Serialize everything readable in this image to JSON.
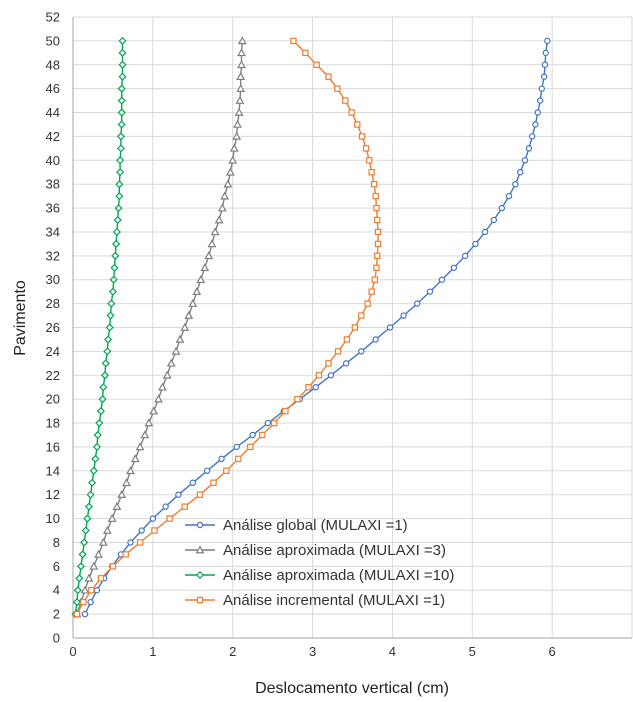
{
  "chart_data": {
    "type": "line",
    "xlabel": "Deslocamento vertical (cm)",
    "ylabel": "Pavimento",
    "xlim": [
      0,
      7
    ],
    "ylim": [
      0,
      52
    ],
    "xticks": [
      0,
      1,
      2,
      3,
      4,
      5,
      6
    ],
    "yticks": [
      0,
      2,
      4,
      6,
      8,
      10,
      12,
      14,
      16,
      18,
      20,
      22,
      24,
      26,
      28,
      30,
      32,
      34,
      36,
      38,
      40,
      42,
      44,
      46,
      48,
      50,
      52
    ],
    "grid": true,
    "legend_position": "bottom-right",
    "series": [
      {
        "name": "Análise global (MULAXI =1)",
        "color": "#4472C4",
        "marker": "circle",
        "x": [
          0.15,
          0.22,
          0.3,
          0.39,
          0.49,
          0.6,
          0.72,
          0.86,
          1.0,
          1.16,
          1.32,
          1.5,
          1.68,
          1.86,
          2.05,
          2.25,
          2.44,
          2.64,
          2.84,
          3.04,
          3.23,
          3.42,
          3.61,
          3.79,
          3.97,
          4.14,
          4.31,
          4.47,
          4.62,
          4.77,
          4.91,
          5.04,
          5.16,
          5.27,
          5.37,
          5.46,
          5.54,
          5.6,
          5.66,
          5.71,
          5.75,
          5.79,
          5.82,
          5.85,
          5.87,
          5.9,
          5.91,
          5.92,
          5.94
        ],
        "y": [
          2,
          3,
          4,
          5,
          6,
          7,
          8,
          9,
          10,
          11,
          12,
          13,
          14,
          15,
          16,
          17,
          18,
          19,
          20,
          21,
          22,
          23,
          24,
          25,
          26,
          27,
          28,
          29,
          30,
          31,
          32,
          33,
          34,
          35,
          36,
          37,
          38,
          39,
          40,
          41,
          42,
          43,
          44,
          45,
          46,
          47,
          48,
          49,
          50
        ]
      },
      {
        "name": "Análise aproximada (MULAXI =3)",
        "color": "#7F7F7F",
        "marker": "triangle",
        "x": [
          0.05,
          0.1,
          0.15,
          0.2,
          0.26,
          0.32,
          0.38,
          0.43,
          0.49,
          0.55,
          0.61,
          0.67,
          0.72,
          0.78,
          0.84,
          0.9,
          0.95,
          1.01,
          1.07,
          1.12,
          1.18,
          1.23,
          1.29,
          1.34,
          1.4,
          1.45,
          1.5,
          1.55,
          1.6,
          1.65,
          1.7,
          1.74,
          1.78,
          1.83,
          1.87,
          1.9,
          1.94,
          1.97,
          2.0,
          2.02,
          2.05,
          2.06,
          2.08,
          2.09,
          2.1,
          2.1,
          2.11,
          2.11,
          2.12
        ],
        "y": [
          2,
          3,
          4,
          5,
          6,
          7,
          8,
          9,
          10,
          11,
          12,
          13,
          14,
          15,
          16,
          17,
          18,
          19,
          20,
          21,
          22,
          23,
          24,
          25,
          26,
          27,
          28,
          29,
          30,
          31,
          32,
          33,
          34,
          35,
          36,
          37,
          38,
          39,
          40,
          41,
          42,
          43,
          44,
          45,
          46,
          47,
          48,
          49,
          50
        ]
      },
      {
        "name": "Análise aproximada (MULAXI =10)",
        "color": "#00A651",
        "marker": "diamond",
        "x": [
          0.03,
          0.05,
          0.06,
          0.08,
          0.1,
          0.12,
          0.14,
          0.16,
          0.18,
          0.2,
          0.22,
          0.24,
          0.26,
          0.28,
          0.3,
          0.31,
          0.33,
          0.35,
          0.37,
          0.38,
          0.4,
          0.41,
          0.43,
          0.44,
          0.46,
          0.47,
          0.48,
          0.5,
          0.51,
          0.52,
          0.53,
          0.54,
          0.55,
          0.56,
          0.57,
          0.58,
          0.58,
          0.59,
          0.59,
          0.6,
          0.6,
          0.61,
          0.61,
          0.61,
          0.61,
          0.62,
          0.62,
          0.62,
          0.62
        ],
        "y": [
          2,
          3,
          4,
          5,
          6,
          7,
          8,
          9,
          10,
          11,
          12,
          13,
          14,
          15,
          16,
          17,
          18,
          19,
          20,
          21,
          22,
          23,
          24,
          25,
          26,
          27,
          28,
          29,
          30,
          31,
          32,
          33,
          34,
          35,
          36,
          37,
          38,
          39,
          40,
          41,
          42,
          43,
          44,
          45,
          46,
          47,
          48,
          49,
          50
        ]
      },
      {
        "name": "Análise incremental (MULAXI =1)",
        "color": "#ED7D31",
        "marker": "square",
        "x": [
          0.05,
          0.13,
          0.23,
          0.35,
          0.5,
          0.66,
          0.84,
          1.02,
          1.21,
          1.4,
          1.59,
          1.76,
          1.92,
          2.07,
          2.22,
          2.37,
          2.52,
          2.66,
          2.81,
          2.95,
          3.08,
          3.2,
          3.32,
          3.43,
          3.53,
          3.61,
          3.69,
          3.74,
          3.78,
          3.8,
          3.81,
          3.82,
          3.82,
          3.81,
          3.8,
          3.79,
          3.77,
          3.74,
          3.71,
          3.67,
          3.62,
          3.56,
          3.49,
          3.41,
          3.31,
          3.2,
          3.05,
          2.91,
          2.76
        ],
        "y": [
          2,
          3,
          4,
          5,
          6,
          7,
          8,
          9,
          10,
          11,
          12,
          13,
          14,
          15,
          16,
          17,
          18,
          19,
          20,
          21,
          22,
          23,
          24,
          25,
          26,
          27,
          28,
          29,
          30,
          31,
          32,
          33,
          34,
          35,
          36,
          37,
          38,
          39,
          40,
          41,
          42,
          43,
          44,
          45,
          46,
          47,
          48,
          49,
          50
        ]
      }
    ]
  }
}
